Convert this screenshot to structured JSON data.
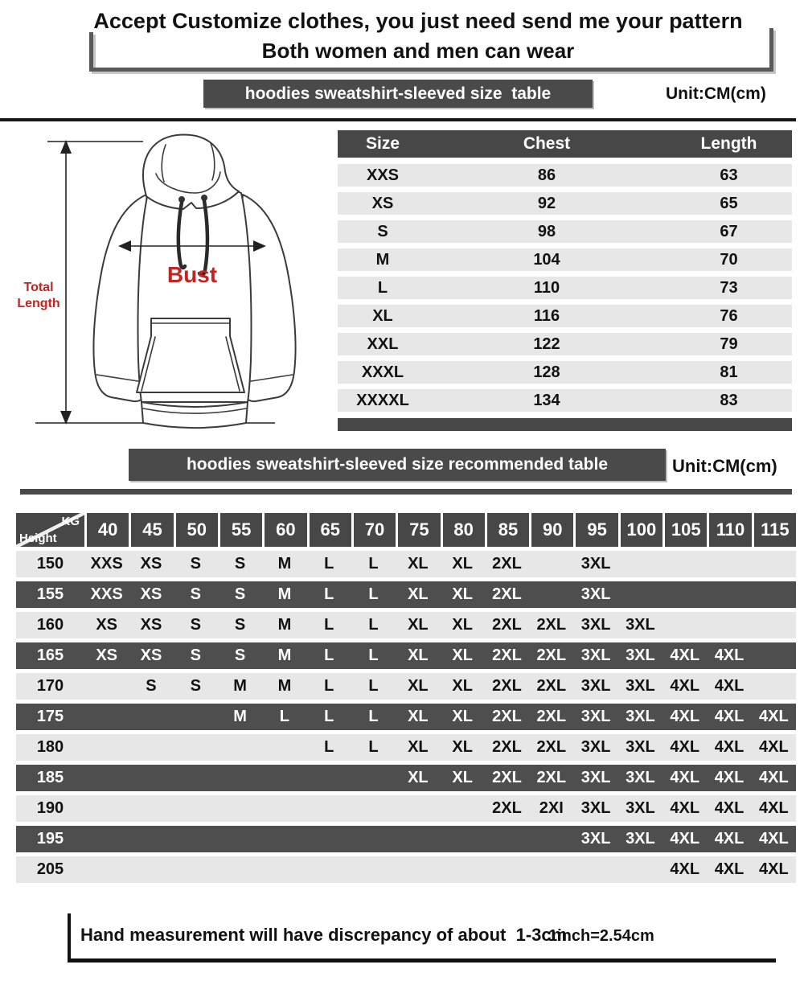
{
  "header": {
    "line1": "Accept Customize clothes, you just need send me your pattern",
    "line2": "Both women and men can wear"
  },
  "size_table_section": {
    "title": "hoodies sweatshirt-sleeved size  table",
    "unit": "Unit:CM(cm)"
  },
  "diagram": {
    "bust_label": "Bust",
    "total_length_label_line1": "Total",
    "total_length_label_line2": "Length"
  },
  "size_table": {
    "columns": [
      "Size",
      "Chest",
      "Length"
    ],
    "rows": [
      [
        "XXS",
        "86",
        "63"
      ],
      [
        "XS",
        "92",
        "65"
      ],
      [
        "S",
        "98",
        "67"
      ],
      [
        "M",
        "104",
        "70"
      ],
      [
        "L",
        "110",
        "73"
      ],
      [
        "XL",
        "116",
        "76"
      ],
      [
        "XXL",
        "122",
        "79"
      ],
      [
        "XXXL",
        "128",
        "81"
      ],
      [
        "XXXXL",
        "134",
        "83"
      ]
    ]
  },
  "recommended_section": {
    "title": "hoodies sweatshirt-sleeved size recommended table",
    "unit": "Unit:CM(cm)"
  },
  "matrix": {
    "corner_top": "KG",
    "corner_bottom": "Height",
    "kg_columns": [
      "40",
      "45",
      "50",
      "55",
      "60",
      "65",
      "70",
      "75",
      "80",
      "85",
      "90",
      "95",
      "100",
      "105",
      "110",
      "115"
    ],
    "rows": [
      {
        "height": "150",
        "cells": [
          "XXS",
          "XS",
          "S",
          "S",
          "M",
          "L",
          "L",
          "XL",
          "XL",
          "2XL",
          "",
          "3XL",
          "",
          "",
          "",
          ""
        ]
      },
      {
        "height": "155",
        "cells": [
          "XXS",
          "XS",
          "S",
          "S",
          "M",
          "L",
          "L",
          "XL",
          "XL",
          "2XL",
          "",
          "3XL",
          "",
          "",
          "",
          ""
        ]
      },
      {
        "height": "160",
        "cells": [
          "XS",
          "XS",
          "S",
          "S",
          "M",
          "L",
          "L",
          "XL",
          "XL",
          "2XL",
          "2XL",
          "3XL",
          "3XL",
          "",
          "",
          ""
        ]
      },
      {
        "height": "165",
        "cells": [
          "XS",
          "XS",
          "S",
          "S",
          "M",
          "L",
          "L",
          "XL",
          "XL",
          "2XL",
          "2XL",
          "3XL",
          "3XL",
          "4XL",
          "4XL",
          ""
        ]
      },
      {
        "height": "170",
        "cells": [
          "",
          "S",
          "S",
          "M",
          "M",
          "L",
          "L",
          "XL",
          "XL",
          "2XL",
          "2XL",
          "3XL",
          "3XL",
          "4XL",
          "4XL",
          ""
        ]
      },
      {
        "height": "175",
        "cells": [
          "",
          "",
          "",
          "M",
          "L",
          "L",
          "L",
          "XL",
          "XL",
          "2XL",
          "2XL",
          "3XL",
          "3XL",
          "4XL",
          "4XL",
          "4XL"
        ]
      },
      {
        "height": "180",
        "cells": [
          "",
          "",
          "",
          "",
          "",
          "L",
          "L",
          "XL",
          "XL",
          "2XL",
          "2XL",
          "3XL",
          "3XL",
          "4XL",
          "4XL",
          "4XL"
        ]
      },
      {
        "height": "185",
        "cells": [
          "",
          "",
          "",
          "",
          "",
          "",
          "",
          "XL",
          "XL",
          "2XL",
          "2XL",
          "3XL",
          "3XL",
          "4XL",
          "4XL",
          "4XL"
        ]
      },
      {
        "height": "190",
        "cells": [
          "",
          "",
          "",
          "",
          "",
          "",
          "",
          "",
          "",
          "2XL",
          "2XI",
          "3XL",
          "3XL",
          "4XL",
          "4XL",
          "4XL"
        ]
      },
      {
        "height": "195",
        "cells": [
          "",
          "",
          "",
          "",
          "",
          "",
          "",
          "",
          "",
          "",
          "",
          "3XL",
          "3XL",
          "4XL",
          "4XL",
          "4XL"
        ]
      },
      {
        "height": "205",
        "cells": [
          "",
          "",
          "",
          "",
          "",
          "",
          "",
          "",
          "",
          "",
          "",
          "",
          "",
          "4XL",
          "4XL",
          "4XL"
        ]
      }
    ]
  },
  "footer": {
    "note": "Hand measurement will have discrepancy of about  1-3cm",
    "conversion": "1inch=2.54cm"
  },
  "colors": {
    "bar_dark": "#4a4a4a",
    "row_light": "#e7e7e7",
    "row_dark": "#4e4e4e",
    "accent_red": "#c22421"
  }
}
